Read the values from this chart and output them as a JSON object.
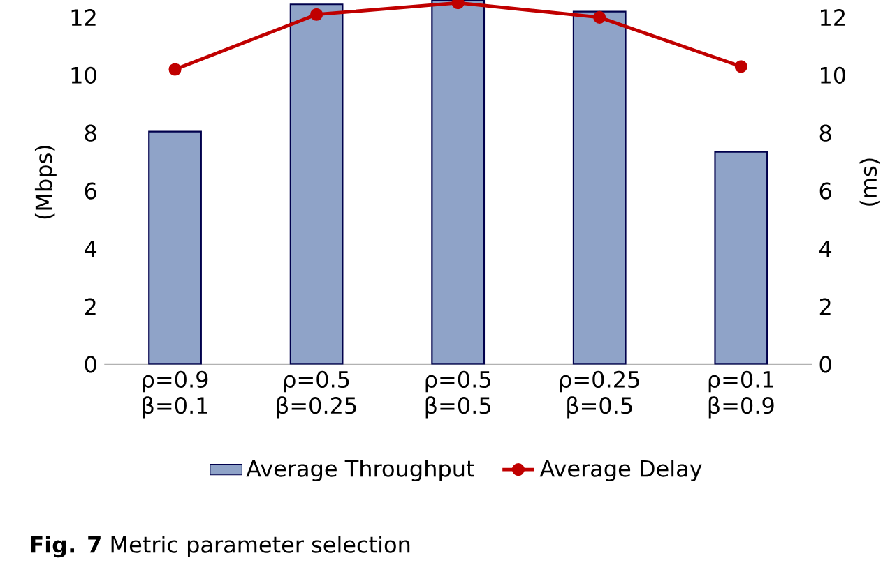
{
  "chart_data": {
    "type": "bar",
    "title": "**Fig. 7** Metric parameter selection",
    "categories": [
      "ρ=0.9 β=0.1",
      "ρ=0.5 β=0.25",
      "ρ=0.5 β=0.5",
      "ρ=0.25 β=0.5",
      "ρ=0.1 β=0.9"
    ],
    "series": [
      {
        "name": "Average Throughput",
        "color": "#8fa3c8",
        "values": [
          8.05,
          12.45,
          12.6,
          12.2,
          7.35
        ]
      },
      {
        "name": "Average Delay",
        "type": "line",
        "axis": "y2",
        "color": "#c00000",
        "values": [
          10.2,
          12.1,
          12.5,
          12.0,
          10.3
        ]
      }
    ],
    "ylabel": "(Mbps)",
    "y2label": "(ms)",
    "ylim": [
      0,
      12.6
    ],
    "yticks": [
      0,
      2,
      4,
      6,
      8,
      10,
      12
    ],
    "y2lim": [
      0,
      12.6
    ],
    "y2ticks": [
      0,
      2,
      4,
      6,
      8,
      10,
      12
    ],
    "legend": "bottom",
    "marker": "circle"
  }
}
